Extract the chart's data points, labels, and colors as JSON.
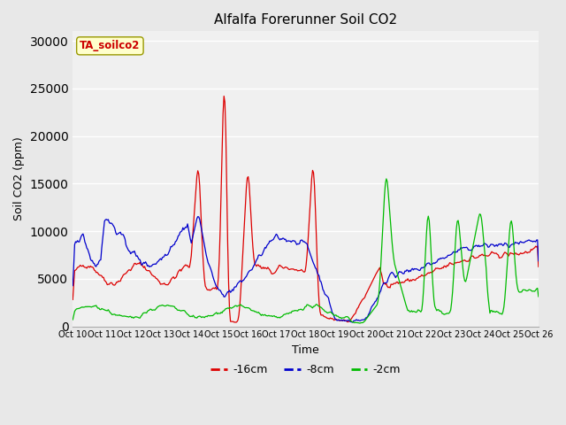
{
  "title": "Alfalfa Forerunner Soil CO2",
  "ylabel": "Soil CO2 (ppm)",
  "xlabel": "Time",
  "annotation": "TA_soilco2",
  "annotation_color": "#cc0000",
  "annotation_bg": "#ffffcc",
  "legend_labels": [
    "-16cm",
    "-8cm",
    "-2cm"
  ],
  "legend_colors": [
    "#dd0000",
    "#0000cc",
    "#00bb00"
  ],
  "x_tick_labels": [
    "Oct 1",
    "1Oct 1",
    "2Oct 1",
    "3Oct 1",
    "4Oct 1",
    "5Oct 1",
    "6Oct 1",
    "7Oct 1",
    "8Oct 1",
    "9Oct 2",
    "0Oct 2",
    "1Oct 2",
    "2Oct 2",
    "3Oct 2",
    "4Oct 2",
    "5Oct 26"
  ],
  "ylim": [
    0,
    31000
  ],
  "yticks": [
    0,
    5000,
    10000,
    15000,
    20000,
    25000,
    30000
  ],
  "bg_color": "#e8e8e8",
  "plot_bg_color": "#f0f0f0",
  "n_points": 500
}
